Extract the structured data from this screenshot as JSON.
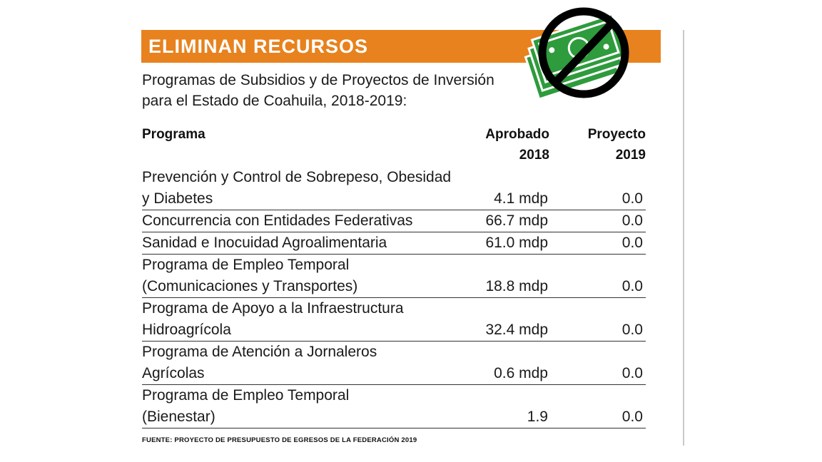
{
  "banner": {
    "title": "ELIMINAN RECURSOS"
  },
  "subtitle": "Programas de Subsidios y de Proyectos de Inversión para el Estado de Coahuila, 2018-2019:",
  "icon": "no-money-icon",
  "colors": {
    "accent": "#e8821e",
    "money_green": "#2e9b3c"
  },
  "chart_data": {
    "type": "table",
    "columns": [
      "Programa",
      "Aprobado 2018",
      "Proyecto 2019"
    ],
    "column_labels": {
      "programa": "Programa",
      "aprobado_line1": "Aprobado",
      "aprobado_line2": "2018",
      "proyecto_line1": "Proyecto",
      "proyecto_line2": "2019"
    },
    "rows": [
      {
        "programa": "Prevención y Control de Sobrepeso, Obesidad y Diabetes",
        "aprobado_2018": "4.1 mdp",
        "proyecto_2019": "0.0"
      },
      {
        "programa": "Concurrencia con Entidades Federativas",
        "aprobado_2018": "66.7 mdp",
        "proyecto_2019": "0.0"
      },
      {
        "programa": "Sanidad e Inocuidad Agroalimentaria",
        "aprobado_2018": "61.0 mdp",
        "proyecto_2019": "0.0"
      },
      {
        "programa": "Programa de Empleo Temporal (Comunicaciones y Transportes)",
        "aprobado_2018": "18.8 mdp",
        "proyecto_2019": "0.0"
      },
      {
        "programa": "Programa de Apoyo a la Infraestructura Hidroagrícola",
        "aprobado_2018": "32.4 mdp",
        "proyecto_2019": "0.0"
      },
      {
        "programa": "Programa de Atención a Jornaleros Agrícolas",
        "aprobado_2018": "0.6 mdp",
        "proyecto_2019": "0.0"
      },
      {
        "programa": "Programa de Empleo Temporal (Bienestar)",
        "aprobado_2018": "1.9",
        "proyecto_2019": "0.0"
      }
    ]
  },
  "source": "FUENTE: PROYECTO DE PRESUPUESTO DE EGRESOS DE LA FEDERACIÓN 2019"
}
